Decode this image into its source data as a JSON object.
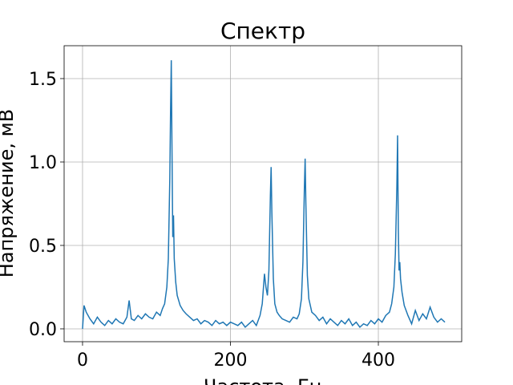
{
  "chart_data": {
    "type": "line",
    "title": "Спектр",
    "x_label": "Частота, Гц",
    "y_label": "Напряжение, мВ",
    "x": [
      0,
      2,
      5,
      10,
      15,
      20,
      25,
      30,
      35,
      40,
      45,
      50,
      55,
      60,
      63,
      66,
      70,
      75,
      80,
      85,
      90,
      95,
      100,
      105,
      108,
      111,
      114,
      116,
      118,
      119,
      120,
      121,
      122,
      123,
      124,
      126,
      128,
      132,
      136,
      140,
      145,
      150,
      155,
      160,
      165,
      170,
      175,
      180,
      185,
      190,
      195,
      200,
      205,
      210,
      215,
      220,
      225,
      230,
      235,
      240,
      243,
      246,
      248,
      250,
      252,
      254,
      255,
      256,
      258,
      260,
      263,
      266,
      270,
      275,
      280,
      285,
      290,
      293,
      296,
      298,
      300,
      301,
      302,
      304,
      306,
      310,
      315,
      320,
      325,
      330,
      335,
      340,
      345,
      350,
      355,
      360,
      365,
      370,
      375,
      380,
      385,
      390,
      395,
      400,
      405,
      410,
      415,
      418,
      421,
      423,
      425,
      426,
      427,
      428,
      429,
      430,
      432,
      435,
      440,
      445,
      450,
      455,
      460,
      465,
      470,
      475,
      480,
      485,
      490
    ],
    "series": [
      {
        "color": "#1f77b4",
        "values": [
          0.0,
          0.14,
          0.1,
          0.06,
          0.03,
          0.07,
          0.04,
          0.02,
          0.05,
          0.03,
          0.06,
          0.04,
          0.03,
          0.07,
          0.17,
          0.06,
          0.05,
          0.08,
          0.06,
          0.09,
          0.07,
          0.06,
          0.1,
          0.08,
          0.12,
          0.15,
          0.25,
          0.42,
          0.9,
          1.3,
          1.61,
          1.05,
          0.55,
          0.68,
          0.42,
          0.28,
          0.2,
          0.14,
          0.11,
          0.09,
          0.07,
          0.05,
          0.06,
          0.03,
          0.05,
          0.04,
          0.02,
          0.05,
          0.03,
          0.04,
          0.02,
          0.04,
          0.03,
          0.02,
          0.04,
          0.01,
          0.03,
          0.05,
          0.02,
          0.08,
          0.15,
          0.33,
          0.25,
          0.2,
          0.35,
          0.8,
          0.97,
          0.7,
          0.3,
          0.15,
          0.1,
          0.08,
          0.06,
          0.05,
          0.04,
          0.07,
          0.06,
          0.09,
          0.18,
          0.4,
          0.85,
          1.02,
          0.75,
          0.32,
          0.18,
          0.1,
          0.08,
          0.05,
          0.07,
          0.03,
          0.06,
          0.04,
          0.02,
          0.05,
          0.03,
          0.06,
          0.02,
          0.04,
          0.01,
          0.03,
          0.02,
          0.05,
          0.03,
          0.06,
          0.04,
          0.08,
          0.1,
          0.15,
          0.25,
          0.45,
          0.85,
          1.16,
          0.6,
          0.35,
          0.4,
          0.3,
          0.22,
          0.14,
          0.08,
          0.03,
          0.11,
          0.05,
          0.09,
          0.06,
          0.13,
          0.07,
          0.04,
          0.06,
          0.04
        ]
      }
    ],
    "xlim": [
      -24.9,
      512.7
    ],
    "ylim": [
      -0.077,
      1.697
    ],
    "xticks": [
      0,
      200,
      400
    ],
    "yticks": [
      {
        "value": 0,
        "label": "0.0"
      },
      0.5,
      {
        "value": 1,
        "label": "1.0"
      },
      1.5
    ],
    "grid": true
  }
}
